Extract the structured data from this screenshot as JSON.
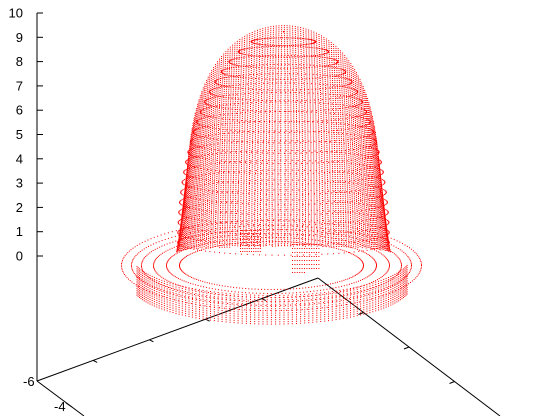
{
  "chart_data": {
    "type": "scatter",
    "subtype": "3d-surface-points",
    "title": "",
    "xlabel": "",
    "ylabel": "",
    "zlabel": "",
    "grid": false,
    "legend": "none",
    "z_axis": {
      "range": [
        0,
        10
      ],
      "ticks": [
        "10",
        "9",
        "8",
        "7",
        "6",
        "5",
        "4",
        "3",
        "2",
        "1",
        "0"
      ]
    },
    "x_axis": {
      "ticks": [
        "-6"
      ]
    },
    "y_axis": {
      "ticks": [
        "-4"
      ]
    },
    "series": [
      {
        "color": "#ff0000",
        "shape": "dome with surrounding ring",
        "dome_peak_z": 9.5,
        "base_z": 0
      }
    ]
  }
}
